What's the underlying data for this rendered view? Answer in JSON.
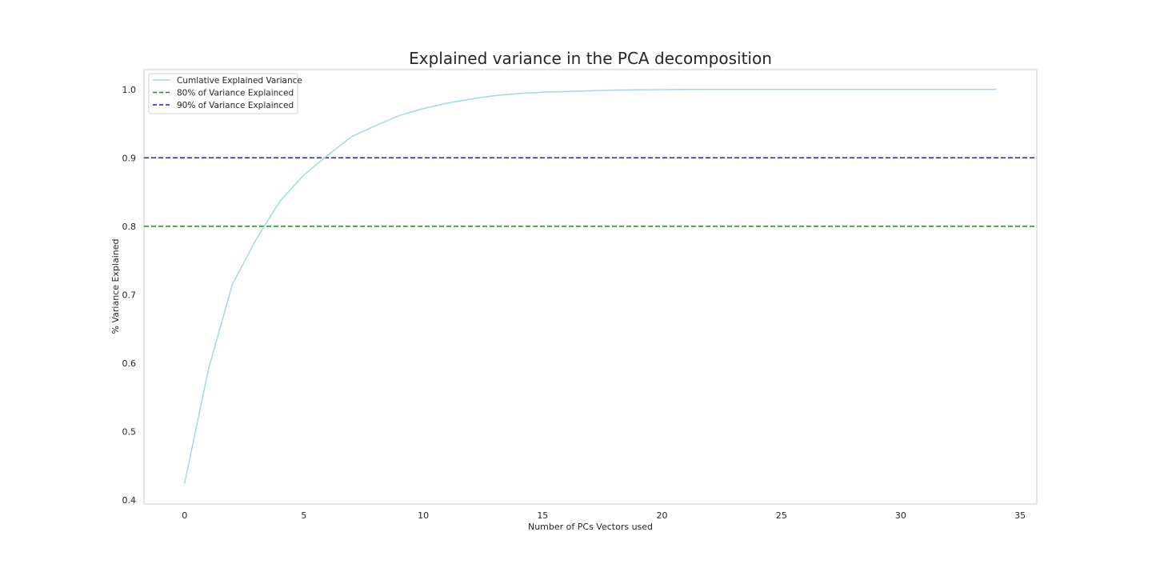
{
  "chart_data": {
    "type": "line",
    "title": "Explained variance in the PCA decomposition",
    "xlabel": "Number of PCs Vectors used",
    "ylabel": "% Variance Explained",
    "xlim": [
      -1.7,
      35.7
    ],
    "ylim": [
      0.394,
      1.029
    ],
    "xticks": [
      0,
      5,
      10,
      15,
      20,
      25,
      30,
      35
    ],
    "yticks": [
      0.4,
      0.5,
      0.6,
      0.7,
      0.8,
      0.9,
      1.0
    ],
    "ytick_labels": [
      "0.4",
      "0.5",
      "0.6",
      "0.7",
      "0.8",
      "0.9",
      "1.0"
    ],
    "grid": false,
    "legend_position": "top-left",
    "series": [
      {
        "name": "Cumlative Explained Variance",
        "color": "#a6d6e6",
        "style": "solid",
        "x": [
          0,
          1,
          2,
          3,
          4,
          5,
          6,
          7,
          8,
          9,
          10,
          11,
          12,
          13,
          14,
          15,
          16,
          17,
          18,
          19,
          20,
          21,
          22,
          23,
          24,
          25,
          26,
          27,
          28,
          29,
          30,
          31,
          32,
          33,
          34
        ],
        "values": [
          0.424,
          0.591,
          0.715,
          0.781,
          0.837,
          0.875,
          0.904,
          0.931,
          0.947,
          0.962,
          0.972,
          0.98,
          0.986,
          0.991,
          0.994,
          0.996,
          0.997,
          0.998,
          0.999,
          0.9995,
          0.9998,
          1.0,
          1.0,
          1.0,
          1.0,
          1.0,
          1.0,
          1.0,
          1.0,
          1.0,
          1.0,
          1.0,
          1.0,
          1.0,
          1.0
        ]
      }
    ],
    "hlines": [
      {
        "name": "80% of Variance Explainced",
        "y": 0.8,
        "color": "#1a8c1a",
        "style": "dashed"
      },
      {
        "name": "90% of Variance Explainced",
        "y": 0.9,
        "color": "#1a1aff",
        "style": "dashed"
      }
    ]
  }
}
